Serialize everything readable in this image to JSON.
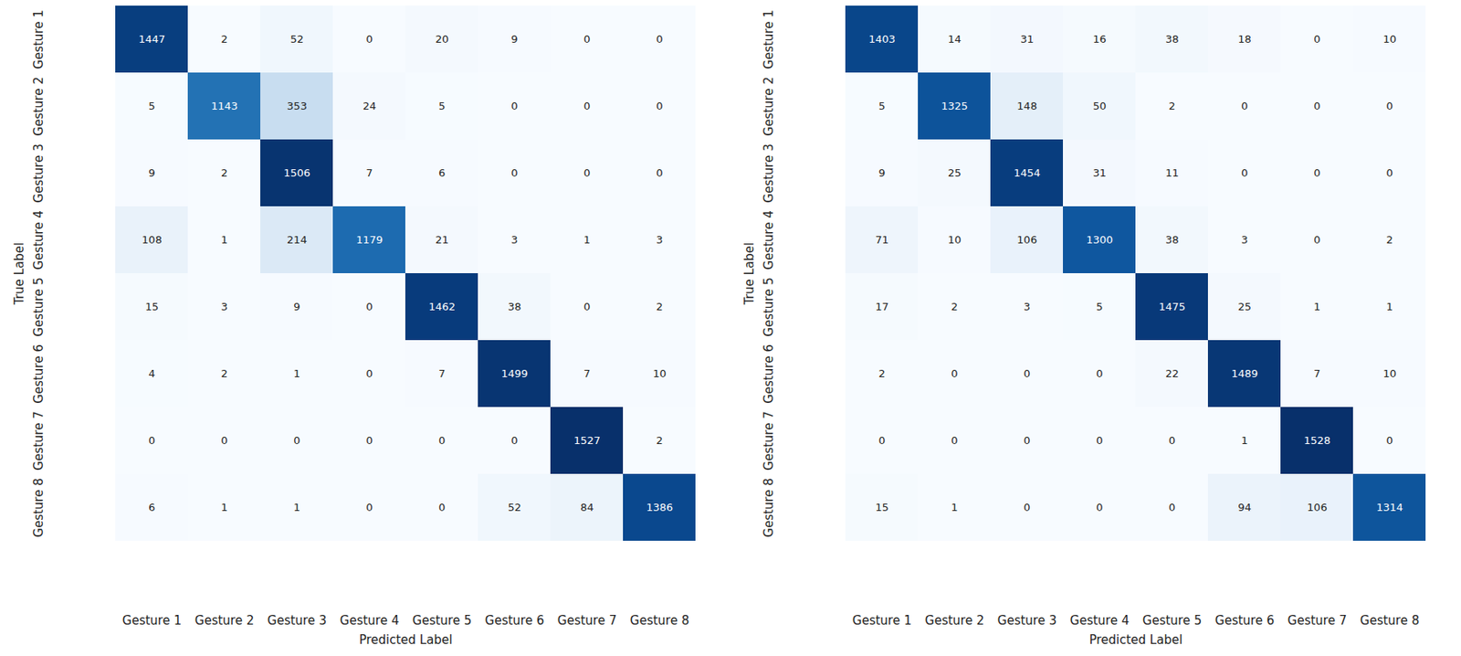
{
  "chart_data": [
    {
      "type": "heatmap",
      "xlabel": "Predicted Label",
      "ylabel": "True Label",
      "x_categories": [
        "Gesture 1",
        "Gesture 2",
        "Gesture 3",
        "Gesture 4",
        "Gesture 5",
        "Gesture 6",
        "Gesture 7",
        "Gesture 8"
      ],
      "y_categories": [
        "Gesture 1",
        "Gesture 2",
        "Gesture 3",
        "Gesture 4",
        "Gesture 5",
        "Gesture 6",
        "Gesture 7",
        "Gesture 8"
      ],
      "matrix": [
        [
          1447,
          2,
          52,
          0,
          20,
          9,
          0,
          0
        ],
        [
          5,
          1143,
          353,
          24,
          5,
          0,
          0,
          0
        ],
        [
          9,
          2,
          1506,
          7,
          6,
          0,
          0,
          0
        ],
        [
          108,
          1,
          214,
          1179,
          21,
          3,
          1,
          3
        ],
        [
          15,
          3,
          9,
          0,
          1462,
          38,
          0,
          2
        ],
        [
          4,
          2,
          1,
          0,
          7,
          1499,
          7,
          10
        ],
        [
          0,
          0,
          0,
          0,
          0,
          0,
          1527,
          2
        ],
        [
          6,
          1,
          1,
          0,
          0,
          52,
          84,
          1386
        ]
      ],
      "color": "Blues",
      "data_labels": true
    },
    {
      "type": "heatmap",
      "xlabel": "Predicted Label",
      "ylabel": "True Label",
      "x_categories": [
        "Gesture 1",
        "Gesture 2",
        "Gesture 3",
        "Gesture 4",
        "Gesture 5",
        "Gesture 6",
        "Gesture 7",
        "Gesture 8"
      ],
      "y_categories": [
        "Gesture 1",
        "Gesture 2",
        "Gesture 3",
        "Gesture 4",
        "Gesture 5",
        "Gesture 6",
        "Gesture 7",
        "Gesture 8"
      ],
      "matrix": [
        [
          1403,
          14,
          31,
          16,
          38,
          18,
          0,
          10
        ],
        [
          5,
          1325,
          148,
          50,
          2,
          0,
          0,
          0
        ],
        [
          9,
          25,
          1454,
          31,
          11,
          0,
          0,
          0
        ],
        [
          71,
          10,
          106,
          1300,
          38,
          3,
          0,
          2
        ],
        [
          17,
          2,
          3,
          5,
          1475,
          25,
          1,
          1
        ],
        [
          2,
          0,
          0,
          0,
          22,
          1489,
          7,
          10
        ],
        [
          0,
          0,
          0,
          0,
          0,
          1,
          1528,
          0
        ],
        [
          15,
          1,
          0,
          0,
          0,
          94,
          106,
          1314
        ]
      ],
      "color": "Blues",
      "data_labels": true
    }
  ]
}
